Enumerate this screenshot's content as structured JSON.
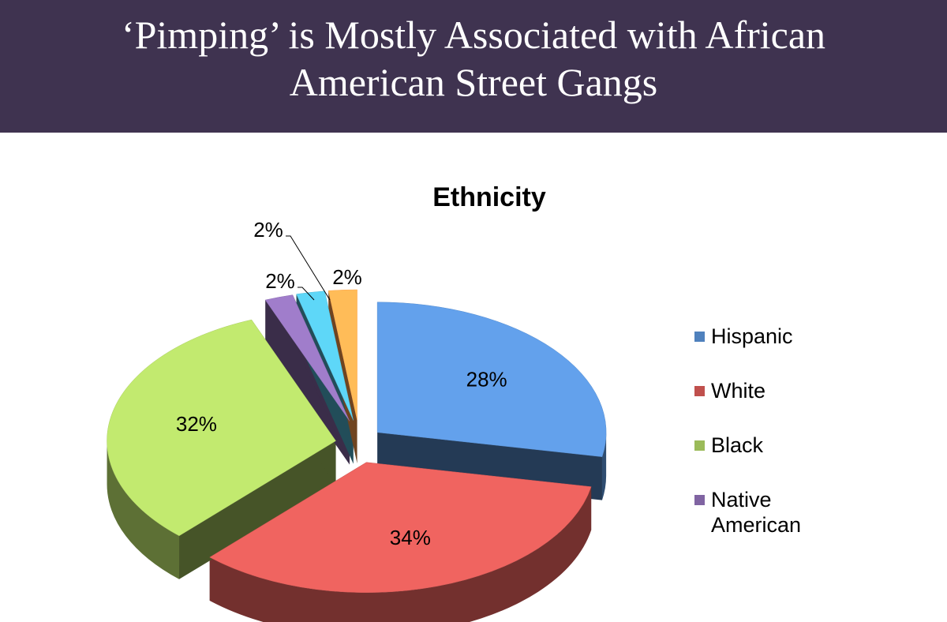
{
  "header": {
    "title": "‘Pimping’ is Mostly Associated with African American Street Gangs"
  },
  "chart_data": {
    "type": "pie3d",
    "title": "Ethnicity",
    "categories": [
      "Hispanic",
      "White",
      "Black",
      "Native American",
      null,
      null
    ],
    "values": [
      28,
      34,
      32,
      2,
      2,
      2
    ],
    "value_labels": [
      "28%",
      "34%",
      "32%",
      "2%",
      "2%",
      "2%"
    ],
    "colors": [
      "#4f81bd",
      "#c0504d",
      "#9bbb59",
      "#8064a2",
      "#4bacc6",
      "#f79646"
    ],
    "legend": "right"
  }
}
